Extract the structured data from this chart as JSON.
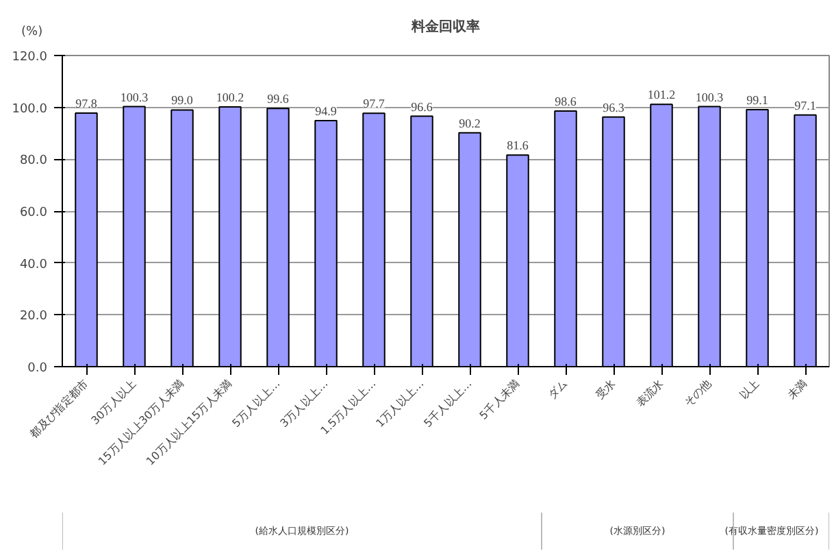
{
  "chart_data": {
    "type": "bar",
    "title": "料金回収率",
    "ylabel": "(%)",
    "categories": [
      "都及び指定都市",
      "30万人以上",
      "15万人以上30万人未満",
      "10万人以上15万人未満",
      "5万人以上…",
      "3万人以上…",
      "1.5万人以上…",
      "1万人以上…",
      "5千人以上…",
      "5千人未満",
      "ダム",
      "受水",
      "表流水",
      "その他",
      "以上",
      "未満"
    ],
    "values": [
      97.8,
      100.3,
      99.0,
      100.2,
      99.6,
      94.9,
      97.7,
      96.6,
      90.2,
      81.6,
      98.6,
      96.3,
      101.2,
      100.3,
      99.1,
      97.1
    ],
    "color": "#9999ff",
    "ylim": [
      0,
      120
    ],
    "yticks": [
      {
        "value": 0,
        "label": "0.0"
      },
      {
        "value": 20,
        "label": "20.0"
      },
      {
        "value": 40,
        "label": "40.0"
      },
      {
        "value": 60,
        "label": "60.0"
      },
      {
        "value": 80,
        "label": "80.0"
      },
      {
        "value": 100,
        "label": "100.0"
      },
      {
        "value": 120,
        "label": "120.0"
      }
    ],
    "grid": "y",
    "value_labels": [
      "97.8",
      "100.3",
      "99.0",
      "100.2",
      "99.6",
      "94.9",
      "97.7",
      "96.6",
      "90.2",
      "81.6",
      "98.6",
      "96.3",
      "101.2",
      "100.3",
      "99.1",
      "97.1"
    ],
    "annotations": [
      "(給水人口規模別区分)",
      "(水源別区分)",
      "(有収水量密度別区分)"
    ]
  }
}
